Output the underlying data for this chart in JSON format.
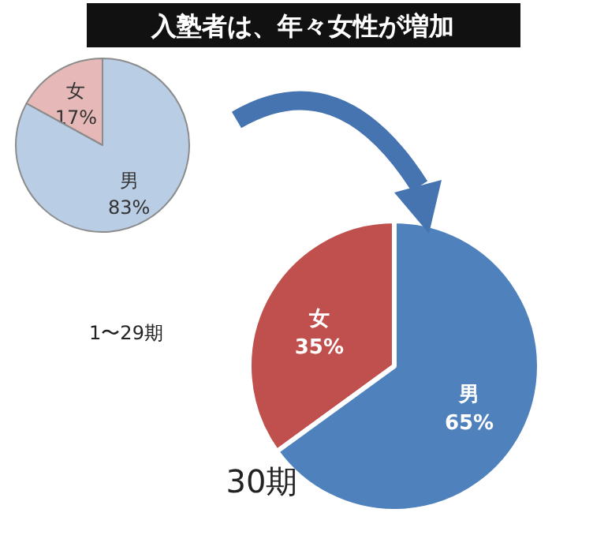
{
  "chart_data": [
    {
      "type": "pie",
      "title": "入塾者は、年々女性が増加",
      "categories": [
        "女",
        "男"
      ],
      "values": [
        17,
        83
      ],
      "colors": [
        "#e6b9b8",
        "#b9cde5"
      ],
      "value_labels": [
        "17%",
        "83%"
      ],
      "annotations": [
        "1〜29期"
      ]
    },
    {
      "type": "pie",
      "categories": [
        "女",
        "男"
      ],
      "values": [
        35,
        65
      ],
      "colors": [
        "#c0504d",
        "#4f81bd"
      ],
      "value_labels": [
        "35%",
        "65%"
      ],
      "annotations": [
        "30期"
      ]
    }
  ]
}
